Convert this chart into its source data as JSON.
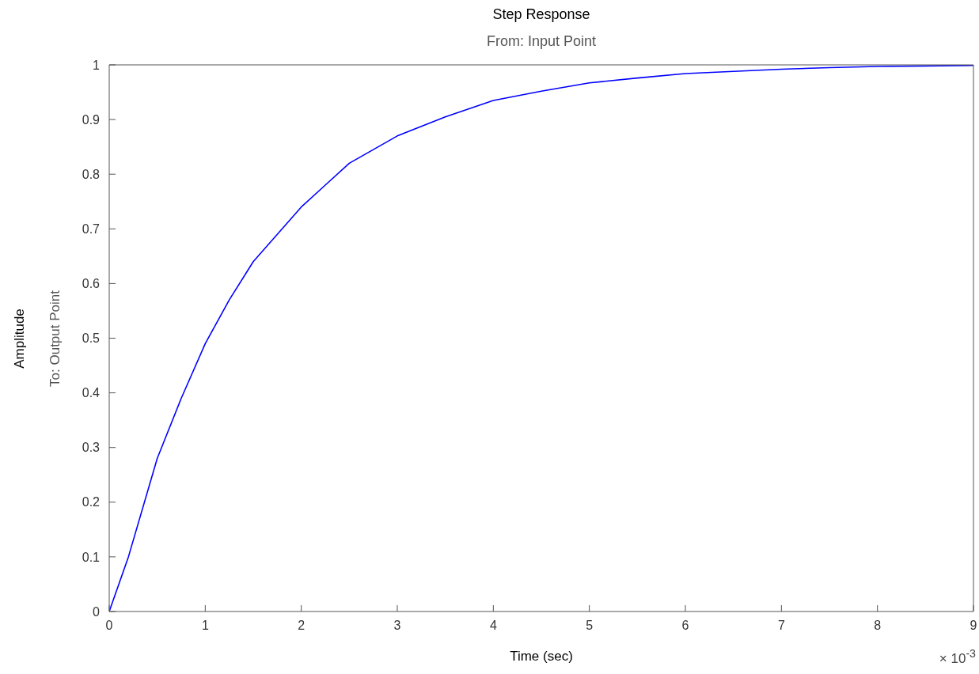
{
  "chart_data": {
    "type": "line",
    "title": "Step Response",
    "subtitle": "From: Input Point",
    "xlabel": "Time (sec)",
    "ylabel": "Amplitude",
    "annotations": [
      "To: Output Point",
      "× 10$^{-3}$"
    ],
    "x": [
      0,
      0.2,
      0.5,
      0.75,
      1,
      1.25,
      1.5,
      1.75,
      2,
      2.25,
      2.5,
      2.75,
      3,
      3.5,
      4,
      4.5,
      5,
      5.5,
      6,
      6.5,
      7,
      7.5,
      8,
      8.5,
      9
    ],
    "series": [
      {
        "color": "#0000ff",
        "values": [
          0,
          0.1,
          0.28,
          0.39,
          0.49,
          0.57,
          0.64,
          0.69,
          0.74,
          0.78,
          0.82,
          0.845,
          0.87,
          0.905,
          0.935,
          0.952,
          0.967,
          0.976,
          0.984,
          0.988,
          0.992,
          0.995,
          0.997,
          0.998,
          0.999
        ]
      }
    ],
    "xlim": [
      0,
      9
    ],
    "xticks": [
      0,
      1,
      2,
      3,
      4,
      5,
      6,
      7,
      8,
      9
    ],
    "ylim": [
      0,
      1
    ],
    "yticks": [
      0,
      0.1,
      0.2,
      0.3,
      0.4,
      0.5,
      0.6,
      0.7,
      0.8,
      0.9,
      1
    ],
    "grid": false,
    "legend": false,
    "marker": "none",
    "line_style": "solid"
  }
}
